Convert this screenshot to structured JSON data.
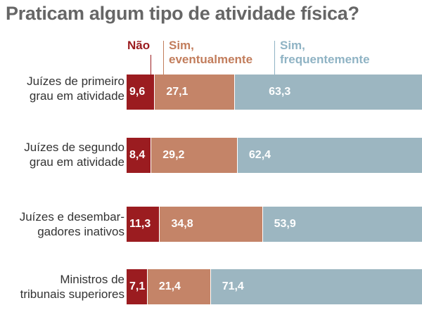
{
  "title": "Praticam algum tipo de atividade física?",
  "legend": [
    {
      "line1": "Não",
      "line2": ""
    },
    {
      "line1": "Sim,",
      "line2": "eventualmente"
    },
    {
      "line1": "Sim,",
      "line2": "frequentemente"
    }
  ],
  "colors": {
    "nao": "#9b1c20",
    "eventualmente": "#c48468",
    "frequentemente": "#9cb6c1",
    "legend_nao": "#9b1c20",
    "legend_eventualmente": "#c27d5c",
    "legend_frequentemente": "#8fb3c4"
  },
  "chart_data": {
    "type": "bar",
    "orientation": "horizontal",
    "stacked": true,
    "title": "Praticam algum tipo de atividade física?",
    "categories": [
      [
        "Juízes de primeiro",
        "grau em atividade"
      ],
      [
        "Juízes de segundo",
        "grau em atividade"
      ],
      [
        "Juízes e desembar-",
        "gadores inativos"
      ],
      [
        "Ministros de",
        "tribunais superiores"
      ]
    ],
    "series": [
      {
        "name": "Não",
        "values": [
          9.6,
          8.4,
          11.3,
          7.1
        ]
      },
      {
        "name": "Sim, eventualmente",
        "values": [
          27.1,
          29.2,
          34.8,
          21.4
        ]
      },
      {
        "name": "Sim, frequentemente",
        "values": [
          63.3,
          62.4,
          53.9,
          71.4
        ]
      }
    ],
    "value_labels": [
      [
        "9,6",
        "27,1",
        "63,3"
      ],
      [
        "8,4",
        "29,2",
        "62,4"
      ],
      [
        "11,3",
        "34,8",
        "53,9"
      ],
      [
        "7,1",
        "21,4",
        "71,4"
      ]
    ],
    "xlim": [
      0,
      100
    ],
    "legend_position": "top"
  }
}
